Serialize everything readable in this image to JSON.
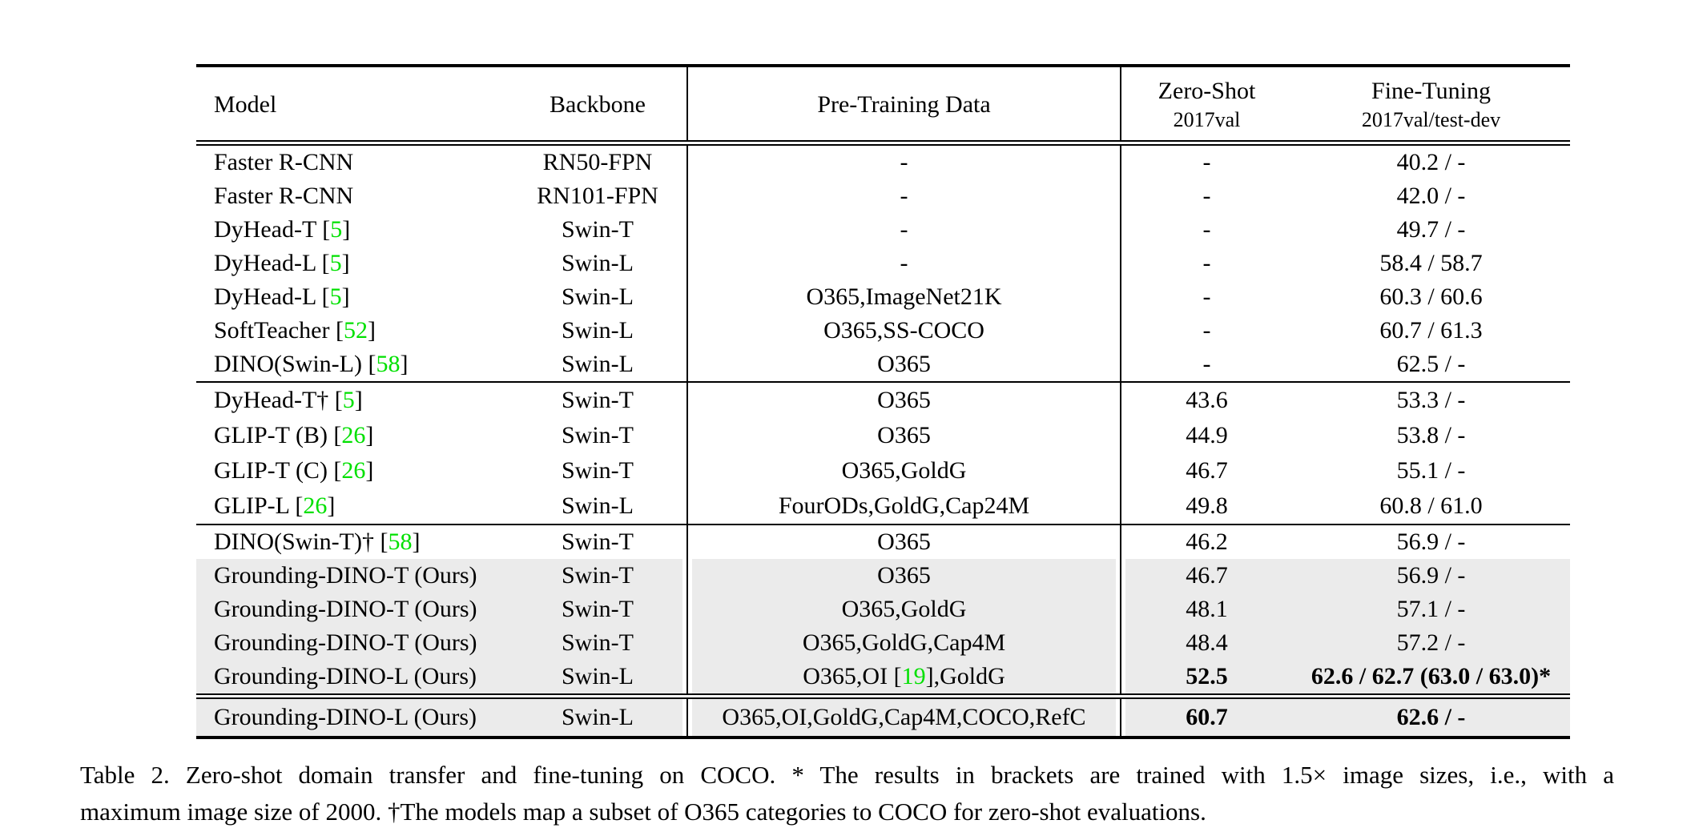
{
  "colors": {
    "citation": "#00e000",
    "highlight": "#ebebeb"
  },
  "table": {
    "columns": [
      {
        "label": "Model"
      },
      {
        "label": "Backbone"
      },
      {
        "label": "Pre-Training Data"
      },
      {
        "label": "Zero-Shot",
        "sublabel": "2017val"
      },
      {
        "label": "Fine-Tuning",
        "sublabel": "2017val/test-dev"
      }
    ],
    "blocks": [
      {
        "rows": [
          {
            "cells": [
              "Faster R-CNN",
              "RN50-FPN",
              "-",
              "-",
              "40.2 / -"
            ]
          },
          {
            "cells": [
              "Faster R-CNN",
              "RN101-FPN",
              "-",
              "-",
              "42.0 / -"
            ]
          },
          {
            "cells": [
              "DyHead-T [{5}]",
              "Swin-T",
              "-",
              "-",
              "49.7 / -"
            ]
          },
          {
            "cells": [
              "DyHead-L [{5}]",
              "Swin-L",
              "-",
              "-",
              "58.4 / 58.7"
            ]
          },
          {
            "cells": [
              "DyHead-L [{5}]",
              "Swin-L",
              "O365,ImageNet21K",
              "-",
              "60.3 / 60.6"
            ]
          },
          {
            "cells": [
              "SoftTeacher [{52}]",
              "Swin-L",
              "O365,SS-COCO",
              "-",
              "60.7 / 61.3"
            ]
          },
          {
            "cells": [
              "DINO(Swin-L) [{58}]",
              "Swin-L",
              "O365",
              "-",
              "62.5 / -"
            ]
          }
        ]
      },
      {
        "rows": [
          {
            "cells": [
              "DyHead-T† [{5}]",
              "Swin-T",
              "O365",
              "43.6",
              "53.3 / -"
            ]
          },
          {
            "cells": [
              "GLIP-T (B) [{26}]",
              "Swin-T",
              "O365",
              "44.9",
              "53.8 / -"
            ]
          },
          {
            "cells": [
              "GLIP-T (C) [{26}]",
              "Swin-T",
              "O365,GoldG",
              "46.7",
              "55.1 / -"
            ]
          },
          {
            "cells": [
              "GLIP-L [{26}]",
              "Swin-L",
              "FourODs,GoldG,Cap24M",
              "49.8",
              "60.8 / 61.0"
            ]
          }
        ]
      },
      {
        "rows": [
          {
            "cells": [
              "DINO(Swin-T)† [{58}]",
              "Swin-T",
              "O365",
              "46.2",
              "56.9 / -"
            ]
          },
          {
            "cells": [
              "Grounding-DINO-T (Ours)",
              "Swin-T",
              "O365",
              "46.7",
              "56.9 / -"
            ],
            "highlight": true
          },
          {
            "cells": [
              "Grounding-DINO-T (Ours)",
              "Swin-T",
              "O365,GoldG",
              "48.1",
              "57.1 / -"
            ],
            "highlight": true
          },
          {
            "cells": [
              "Grounding-DINO-T (Ours)",
              "Swin-T",
              "O365,GoldG,Cap4M",
              "48.4",
              "57.2 / -"
            ],
            "highlight": true
          },
          {
            "cells": [
              "Grounding-DINO-L (Ours)",
              "Swin-L",
              "O365,OI [{19}],GoldG",
              "52.5",
              "62.6 / 62.7 (63.0 / 63.0)*"
            ],
            "highlight": true,
            "bold": [
              3,
              4
            ]
          }
        ]
      },
      {
        "rows": [
          {
            "cells": [
              "Grounding-DINO-L (Ours)",
              "Swin-L",
              "O365,OI,GoldG,Cap4M,COCO,RefC",
              "60.7",
              "62.6 / -"
            ],
            "highlight": true,
            "bold": [
              3,
              4
            ]
          }
        ]
      }
    ]
  },
  "caption": {
    "line1": "Table 2.  Zero-shot domain transfer and fine-tuning on COCO. * The results in brackets are trained with 1.5× image sizes, i.e., with a",
    "line2": "maximum image size of 2000. †The models map a subset of O365 categories to COCO for zero-shot evaluations."
  }
}
